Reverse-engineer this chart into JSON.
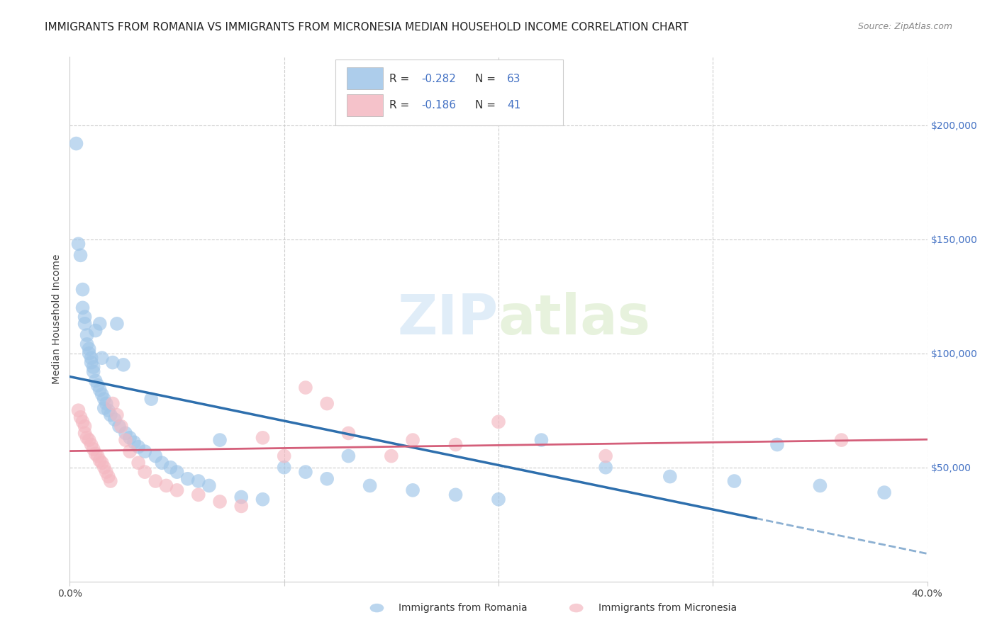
{
  "title": "IMMIGRANTS FROM ROMANIA VS IMMIGRANTS FROM MICRONESIA MEDIAN HOUSEHOLD INCOME CORRELATION CHART",
  "source": "Source: ZipAtlas.com",
  "ylabel": "Median Household Income",
  "right_ytick_labels": [
    "$50,000",
    "$100,000",
    "$150,000",
    "$200,000"
  ],
  "right_ytick_values": [
    50000,
    100000,
    150000,
    200000
  ],
  "ylim": [
    0,
    230000
  ],
  "xlim": [
    0.0,
    0.4
  ],
  "watermark_zip": "ZIP",
  "watermark_atlas": "atlas",
  "romania_color": "#9fc5e8",
  "micronesia_color": "#f4b8c1",
  "romania_line_color": "#2e6fad",
  "micronesia_line_color": "#d45f7a",
  "romania_R": -0.282,
  "romania_N": 63,
  "micronesia_R": -0.186,
  "micronesia_N": 41,
  "background_color": "#ffffff",
  "grid_color": "#cccccc",
  "title_fontsize": 11,
  "source_fontsize": 9,
  "tick_fontsize": 10,
  "ylabel_fontsize": 10,
  "legend_R_label": "R = ",
  "legend_N_label": "N = ",
  "legend_romania_R": "-0.282",
  "legend_romania_N": "63",
  "legend_micronesia_R": "-0.186",
  "legend_micronesia_N": "41",
  "bottom_legend_romania": "Immigrants from Romania",
  "bottom_legend_micronesia": "Immigrants from Micronesia",
  "romania_x": [
    0.003,
    0.004,
    0.005,
    0.006,
    0.006,
    0.007,
    0.007,
    0.008,
    0.008,
    0.009,
    0.009,
    0.01,
    0.01,
    0.011,
    0.011,
    0.012,
    0.012,
    0.013,
    0.014,
    0.014,
    0.015,
    0.015,
    0.016,
    0.016,
    0.017,
    0.018,
    0.019,
    0.02,
    0.021,
    0.022,
    0.023,
    0.025,
    0.026,
    0.028,
    0.03,
    0.032,
    0.035,
    0.038,
    0.04,
    0.043,
    0.047,
    0.05,
    0.055,
    0.06,
    0.065,
    0.07,
    0.08,
    0.09,
    0.1,
    0.11,
    0.12,
    0.13,
    0.14,
    0.16,
    0.18,
    0.2,
    0.22,
    0.25,
    0.28,
    0.31,
    0.33,
    0.35,
    0.38
  ],
  "romania_y": [
    192000,
    148000,
    143000,
    128000,
    120000,
    116000,
    113000,
    108000,
    104000,
    102000,
    100000,
    98000,
    96000,
    94000,
    92000,
    110000,
    88000,
    86000,
    84000,
    113000,
    82000,
    98000,
    80000,
    76000,
    78000,
    75000,
    73000,
    96000,
    71000,
    113000,
    68000,
    95000,
    65000,
    63000,
    61000,
    59000,
    57000,
    80000,
    55000,
    52000,
    50000,
    48000,
    45000,
    44000,
    42000,
    62000,
    37000,
    36000,
    50000,
    48000,
    45000,
    55000,
    42000,
    40000,
    38000,
    36000,
    62000,
    50000,
    46000,
    44000,
    60000,
    42000,
    39000
  ],
  "micronesia_x": [
    0.004,
    0.005,
    0.006,
    0.007,
    0.007,
    0.008,
    0.009,
    0.01,
    0.011,
    0.012,
    0.013,
    0.014,
    0.015,
    0.016,
    0.017,
    0.018,
    0.019,
    0.02,
    0.022,
    0.024,
    0.026,
    0.028,
    0.032,
    0.035,
    0.04,
    0.045,
    0.05,
    0.06,
    0.07,
    0.08,
    0.09,
    0.1,
    0.11,
    0.12,
    0.13,
    0.15,
    0.16,
    0.18,
    0.2,
    0.25,
    0.36
  ],
  "micronesia_y": [
    75000,
    72000,
    70000,
    68000,
    65000,
    63000,
    62000,
    60000,
    58000,
    56000,
    55000,
    53000,
    52000,
    50000,
    48000,
    46000,
    44000,
    78000,
    73000,
    68000,
    62000,
    57000,
    52000,
    48000,
    44000,
    42000,
    40000,
    38000,
    35000,
    33000,
    63000,
    55000,
    85000,
    78000,
    65000,
    55000,
    62000,
    60000,
    70000,
    55000,
    62000
  ]
}
